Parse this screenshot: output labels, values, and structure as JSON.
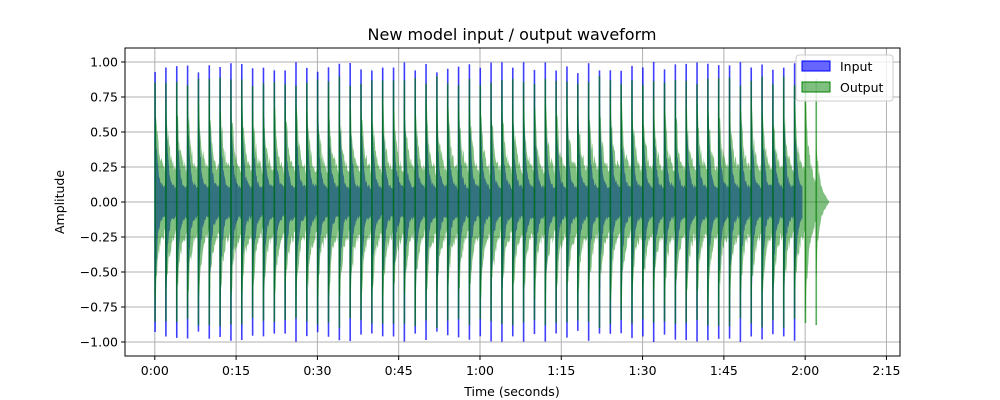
{
  "chart_data": {
    "type": "area",
    "title": "New model input / output waveform",
    "xlabel": "Time (seconds)",
    "ylabel": "Amplitude",
    "xlim": [
      -5.5,
      137.5
    ],
    "ylim": [
      -1.1,
      1.1
    ],
    "x_ticks": [
      {
        "value": 0,
        "label": "0:00"
      },
      {
        "value": 15,
        "label": "0:15"
      },
      {
        "value": 30,
        "label": "0:30"
      },
      {
        "value": 45,
        "label": "0:45"
      },
      {
        "value": 60,
        "label": "1:00"
      },
      {
        "value": 75,
        "label": "1:15"
      },
      {
        "value": 90,
        "label": "1:30"
      },
      {
        "value": 105,
        "label": "1:45"
      },
      {
        "value": 120,
        "label": "2:00"
      },
      {
        "value": 135,
        "label": "2:15"
      }
    ],
    "y_ticks": [
      {
        "value": 1.0,
        "label": "1.00"
      },
      {
        "value": 0.75,
        "label": "0.75"
      },
      {
        "value": 0.5,
        "label": "0.50"
      },
      {
        "value": 0.25,
        "label": "0.25"
      },
      {
        "value": 0.0,
        "label": "0.00"
      },
      {
        "value": -0.25,
        "label": "−0.25"
      },
      {
        "value": -0.5,
        "label": "−0.50"
      },
      {
        "value": -0.75,
        "label": "−0.75"
      },
      {
        "value": -1.0,
        "label": "−1.00"
      }
    ],
    "grid": true,
    "legend_position": "top-right",
    "series": [
      {
        "name": "Input",
        "color": "#0000ff",
        "alpha": 0.6,
        "x_range": [
          0,
          119.5
        ],
        "peak_times": [
          0,
          2,
          4,
          6,
          8,
          10,
          12,
          14,
          16,
          18,
          20,
          22,
          24,
          26,
          28,
          30,
          32,
          34,
          36,
          38,
          40,
          42,
          44,
          46,
          48,
          50,
          52,
          54,
          56,
          58,
          60,
          62,
          64,
          66,
          68,
          70,
          72,
          74,
          76,
          78,
          80,
          82,
          84,
          86,
          88,
          90,
          92,
          94,
          96,
          98,
          100,
          102,
          104,
          106,
          108,
          110,
          112,
          114,
          116,
          118
        ],
        "peak_amplitude": 1.0,
        "floor_amplitude": 0.12
      },
      {
        "name": "Output",
        "color": "#008000",
        "alpha": 0.5,
        "x_range": [
          0,
          124.5
        ],
        "peak_times": [
          0,
          2,
          4,
          6,
          8,
          10,
          12,
          14,
          16,
          18,
          20,
          22,
          24,
          26,
          28,
          30,
          32,
          34,
          36,
          38,
          40,
          42,
          44,
          46,
          48,
          50,
          52,
          54,
          56,
          58,
          60,
          62,
          64,
          66,
          68,
          70,
          72,
          74,
          76,
          78,
          80,
          82,
          84,
          86,
          88,
          90,
          92,
          94,
          96,
          98,
          100,
          102,
          104,
          106,
          108,
          110,
          112,
          114,
          116,
          118,
          120,
          122
        ],
        "peak_amplitude": 0.9,
        "floor_amplitude": 0.25,
        "tail_end": 124.5
      }
    ]
  }
}
